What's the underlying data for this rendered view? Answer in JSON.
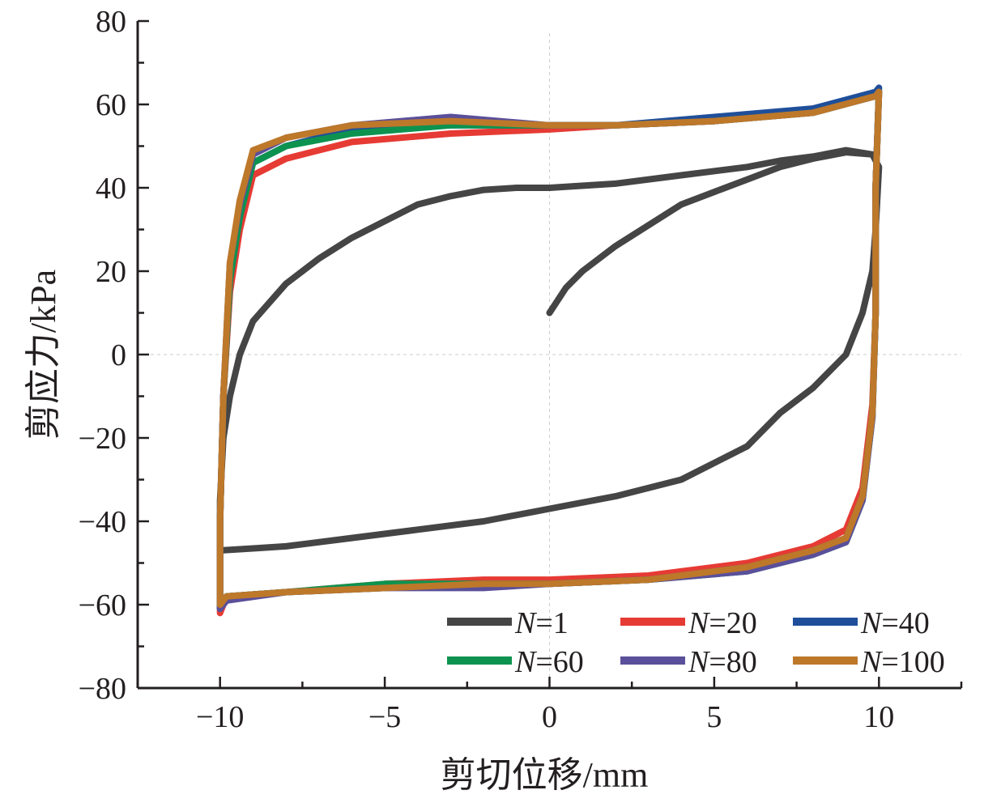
{
  "chart_data": {
    "type": "line",
    "xlabel": "剪切位移/mm",
    "ylabel": "剪应力/kPa",
    "xlim": [
      -12.5,
      12.5
    ],
    "ylim": [
      -80,
      80
    ],
    "xticks": [
      -10,
      -5,
      0,
      5,
      10
    ],
    "xtick_labels": [
      "−10",
      "−5",
      "0",
      "5",
      "10"
    ],
    "yticks": [
      80,
      60,
      40,
      20,
      0,
      -20,
      -40,
      -60,
      -80
    ],
    "ytick_labels": [
      "80",
      "60",
      "40",
      "20",
      "0",
      "−20",
      "−40",
      "−60",
      "−80"
    ],
    "grid": "dashed lines at x=0 and y=0",
    "legend_placement": "bottom-right",
    "series": [
      {
        "name": "N=1",
        "color": "#454545",
        "x": [
          0,
          0.5,
          1,
          2,
          3,
          4,
          5,
          6,
          7,
          8,
          9,
          9.8,
          10,
          9.9,
          9.8,
          9.5,
          9,
          8,
          7,
          6,
          4,
          2,
          0,
          -2,
          -4,
          -6,
          -8,
          -9,
          -10,
          -10,
          -9.9,
          -9.7,
          -9.4,
          -9,
          -8,
          -7,
          -6,
          -5,
          -4,
          -3,
          -2,
          -1,
          0,
          2,
          4,
          6,
          7,
          8,
          9,
          9.8
        ],
        "y": [
          10,
          16,
          20,
          26,
          31,
          36,
          39,
          42,
          45,
          47,
          48.5,
          48,
          45,
          30,
          20,
          10,
          0,
          -8,
          -14,
          -22,
          -30,
          -34,
          -37,
          -40,
          -42,
          -44,
          -46,
          -46.5,
          -47,
          -35,
          -20,
          -10,
          0,
          8,
          17,
          23,
          28,
          32,
          36,
          38,
          39.5,
          40,
          40,
          41,
          43,
          45,
          46.5,
          47.5,
          49,
          48
        ]
      },
      {
        "name": "N=20",
        "color": "#e63b34",
        "x": [
          -10,
          -9.8,
          -8,
          -5,
          -2,
          0,
          3,
          6,
          8,
          9,
          9.5,
          9.8,
          9.9,
          9.9,
          10,
          9.9,
          8,
          5,
          2,
          0,
          -3,
          -6,
          -8,
          -9,
          -9.4,
          -9.7,
          -9.9,
          -10,
          -10
        ],
        "y": [
          -62,
          -58,
          -57,
          -55,
          -54,
          -54,
          -53,
          -50,
          -46,
          -42,
          -32,
          -12,
          10,
          40,
          63,
          62,
          59,
          56,
          55,
          54,
          53,
          51,
          47,
          43,
          30,
          15,
          -10,
          -40,
          -62
        ]
      },
      {
        "name": "N=40",
        "color": "#1f4f9a",
        "x": [
          -10,
          -9.8,
          -8,
          -5,
          -2,
          0,
          3,
          6,
          8,
          9,
          9.5,
          9.8,
          9.9,
          9.9,
          10,
          9.9,
          8,
          5,
          2,
          0,
          -3,
          -6,
          -8,
          -9,
          -9.4,
          -9.7,
          -9.9,
          -10,
          -10
        ],
        "y": [
          -61,
          -58,
          -57,
          -56,
          -55,
          -55,
          -54,
          -51,
          -47,
          -44,
          -34,
          -14,
          10,
          40,
          64,
          63,
          59,
          57,
          55,
          55,
          55,
          54,
          50,
          46,
          33,
          18,
          -10,
          -40,
          -61
        ]
      },
      {
        "name": "N=60",
        "color": "#0d934f",
        "x": [
          -10,
          -9.8,
          -8,
          -5,
          -2,
          0,
          3,
          6,
          8,
          9,
          9.5,
          9.8,
          9.9,
          9.9,
          10,
          9.9,
          8,
          5,
          2,
          0,
          -3,
          -6,
          -8,
          -9,
          -9.4,
          -9.7,
          -9.9,
          -10,
          -10
        ],
        "y": [
          -61,
          -58,
          -57,
          -55,
          -55,
          -55,
          -54,
          -52,
          -48,
          -45,
          -35,
          -15,
          10,
          40,
          63,
          62,
          58,
          56,
          55,
          55,
          55,
          53,
          50,
          46,
          33,
          18,
          -10,
          -40,
          -61
        ]
      },
      {
        "name": "N=80",
        "color": "#5a4f9a",
        "x": [
          -10,
          -9.8,
          -8,
          -5,
          -2,
          0,
          3,
          6,
          8,
          9,
          9.5,
          9.8,
          9.9,
          9.9,
          10,
          9.9,
          8,
          5,
          2,
          0,
          -3,
          -6,
          -8,
          -9,
          -9.4,
          -9.7,
          -9.9,
          -10,
          -10
        ],
        "y": [
          -61,
          -59,
          -57,
          -56,
          -56,
          -55,
          -54,
          -52,
          -48,
          -45,
          -35,
          -15,
          10,
          40,
          63,
          62,
          58,
          56,
          55,
          55,
          57,
          55,
          52,
          48,
          36,
          22,
          -10,
          -40,
          -61
        ]
      },
      {
        "name": "N=100",
        "color": "#bd782a",
        "x": [
          -10,
          -9.8,
          -8,
          -5,
          -2,
          0,
          3,
          6,
          8,
          9,
          9.5,
          9.8,
          9.9,
          9.9,
          10,
          9.9,
          8,
          5,
          2,
          0,
          -3,
          -6,
          -8,
          -9,
          -9.4,
          -9.7,
          -9.9,
          -10,
          -10
        ],
        "y": [
          -60,
          -58,
          -57,
          -56,
          -55,
          -55,
          -54,
          -51,
          -47,
          -44,
          -34,
          -14,
          10,
          40,
          63,
          62,
          58,
          56,
          55,
          55,
          56,
          55,
          52,
          49,
          37,
          22,
          -10,
          -40,
          -60
        ]
      }
    ]
  }
}
